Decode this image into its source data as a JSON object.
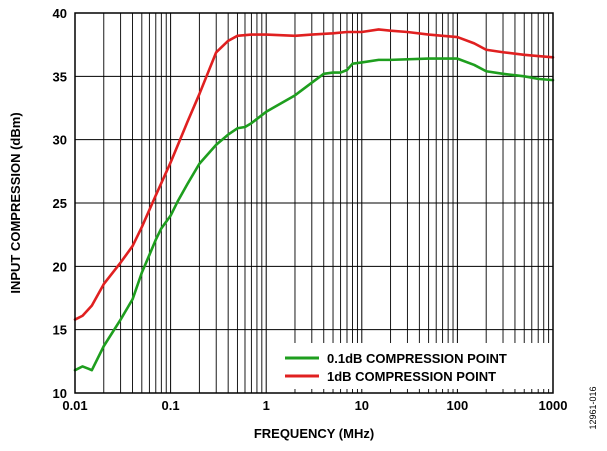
{
  "chart_data": {
    "type": "line",
    "title": "",
    "xlabel": "FREQUENCY (MHz)",
    "ylabel": "INPUT COMPRESSION (dBm)",
    "xscale": "log",
    "xlim": [
      0.01,
      1000
    ],
    "ylim": [
      10,
      40
    ],
    "grid": true,
    "legend_position": "bottom-right",
    "x_tick_labels": [
      "0.01",
      "0.1",
      "1",
      "10",
      "100",
      "1000"
    ],
    "y_tick_labels": [
      "10",
      "15",
      "20",
      "25",
      "30",
      "35",
      "40"
    ],
    "series": [
      {
        "name": "0.1dB COMPRESSION POINT",
        "color": "#1e9e1e",
        "x": [
          0.01,
          0.012,
          0.014,
          0.015,
          0.02,
          0.03,
          0.04,
          0.05,
          0.06,
          0.07,
          0.08,
          0.1,
          0.12,
          0.15,
          0.2,
          0.3,
          0.4,
          0.5,
          0.6,
          0.7,
          1,
          2,
          3,
          4,
          5,
          6,
          7,
          8,
          10,
          15,
          20,
          50,
          100,
          150,
          200,
          300,
          500,
          700,
          1000
        ],
        "y": [
          11.8,
          12.1,
          11.9,
          11.8,
          13.7,
          15.8,
          17.4,
          19.5,
          20.9,
          22.1,
          23.0,
          24.0,
          25.2,
          26.5,
          28.1,
          29.6,
          30.4,
          30.9,
          31.0,
          31.3,
          32.2,
          33.5,
          34.5,
          35.2,
          35.3,
          35.3,
          35.5,
          36.0,
          36.1,
          36.3,
          36.3,
          36.4,
          36.4,
          35.9,
          35.4,
          35.2,
          35.0,
          34.8,
          34.7
        ]
      },
      {
        "name": "1dB COMPRESSION POINT",
        "color": "#e02020",
        "x": [
          0.01,
          0.012,
          0.015,
          0.02,
          0.03,
          0.04,
          0.05,
          0.07,
          0.1,
          0.15,
          0.2,
          0.3,
          0.4,
          0.5,
          0.7,
          1,
          2,
          3,
          5,
          7,
          10,
          15,
          20,
          30,
          50,
          70,
          100,
          150,
          200,
          300,
          500,
          700,
          1000
        ],
        "y": [
          15.8,
          16.1,
          16.9,
          18.6,
          20.3,
          21.6,
          23.1,
          25.6,
          28.2,
          31.4,
          33.6,
          36.9,
          37.8,
          38.2,
          38.3,
          38.3,
          38.2,
          38.3,
          38.4,
          38.5,
          38.5,
          38.7,
          38.6,
          38.5,
          38.3,
          38.2,
          38.1,
          37.6,
          37.1,
          36.9,
          36.7,
          36.6,
          36.5
        ]
      }
    ]
  },
  "figure_id": "12961-016"
}
